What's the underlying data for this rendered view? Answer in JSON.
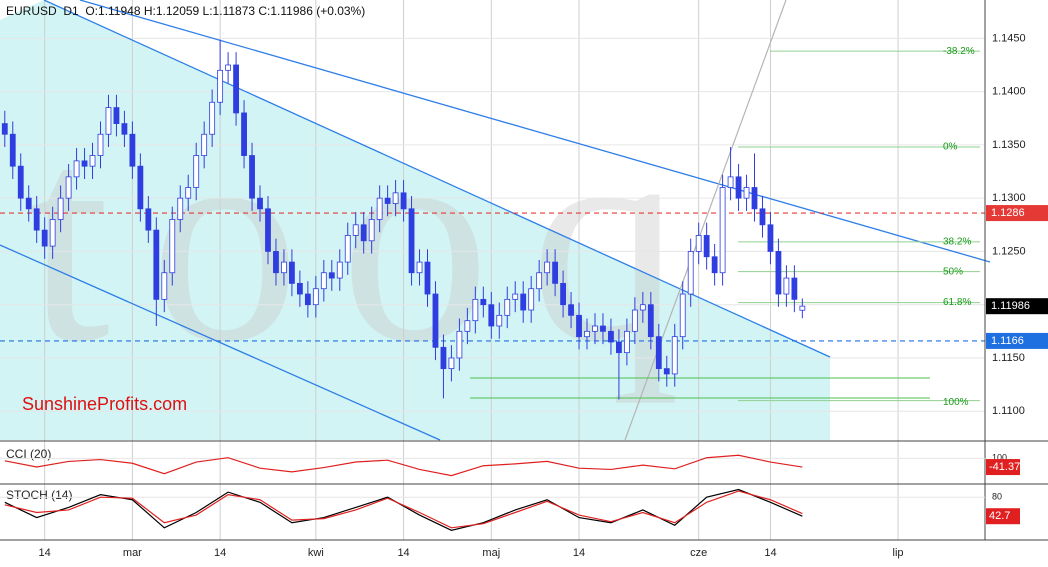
{
  "chart_data": {
    "type": "candlestick",
    "title": "EURUSD  D1  O:1.11948 H:1.12059 L:1.11873 C:1.11986 (+0.03%)",
    "watermark": "Stooq",
    "brand": "SunshineProfits.com",
    "up_color": "#ffffff",
    "down_color": "#2f3ee0",
    "edge_color": "#2f3ee0",
    "xlim": [
      -0.6,
      122.9
    ],
    "ylim": [
      1.1073,
      1.1486
    ],
    "xticks": [
      {
        "value": 5,
        "label": "14"
      },
      {
        "value": 16,
        "label": "mar"
      },
      {
        "value": 27,
        "label": "14"
      },
      {
        "value": 39,
        "label": "kwi"
      },
      {
        "value": 50,
        "label": "14"
      },
      {
        "value": 61,
        "label": "maj"
      },
      {
        "value": 72,
        "label": "14"
      },
      {
        "value": 87,
        "label": "cze"
      },
      {
        "value": 96,
        "label": "14"
      },
      {
        "value": 112,
        "label": "lip"
      }
    ],
    "yticks": [
      {
        "value": 1.145,
        "label": "1.1450"
      },
      {
        "value": 1.14,
        "label": "1.1400"
      },
      {
        "value": 1.135,
        "label": "1.1350"
      },
      {
        "value": 1.13,
        "label": "1.1300"
      },
      {
        "value": 1.125,
        "label": "1.1250"
      },
      {
        "value": 1.12,
        "label": "1.1200"
      },
      {
        "value": 1.115,
        "label": "1.1150"
      },
      {
        "value": 1.11,
        "label": "1.1100"
      }
    ],
    "grid": true,
    "levels": [
      {
        "value": 1.1286,
        "color": "#e53935"
      },
      {
        "value": 1.1166,
        "color": "#1e6fe0"
      },
      {
        "value": 1.11986,
        "color": "#000000"
      }
    ],
    "fib": [
      {
        "value": -38.2,
        "label": "-38.2%",
        "price": 1.1438
      },
      {
        "value": 0,
        "label": "0%",
        "price": 1.1348
      },
      {
        "value": 38.2,
        "label": "38.2%",
        "price": 1.1259
      },
      {
        "value": 50,
        "label": "50%",
        "price": 1.1231
      },
      {
        "value": 61.8,
        "label": "61.8%",
        "price": 1.1202
      },
      {
        "value": 100,
        "label": "100%",
        "price": 1.111
      }
    ],
    "ohlc": [
      [
        1.137,
        1.1382,
        1.1348,
        1.136
      ],
      [
        1.136,
        1.1372,
        1.1318,
        1.133
      ],
      [
        1.133,
        1.1342,
        1.1288,
        1.13
      ],
      [
        1.13,
        1.1312,
        1.1278,
        1.129
      ],
      [
        1.129,
        1.1302,
        1.1258,
        1.127
      ],
      [
        1.127,
        1.1282,
        1.1243,
        1.1255
      ],
      [
        1.1255,
        1.1292,
        1.1243,
        1.128
      ],
      [
        1.128,
        1.1312,
        1.1268,
        1.13
      ],
      [
        1.13,
        1.1332,
        1.1288,
        1.132
      ],
      [
        1.132,
        1.1347,
        1.1308,
        1.1335
      ],
      [
        1.1335,
        1.1347,
        1.1318,
        1.133
      ],
      [
        1.133,
        1.1352,
        1.1318,
        1.134
      ],
      [
        1.134,
        1.1372,
        1.1328,
        1.136
      ],
      [
        1.136,
        1.1397,
        1.1348,
        1.1385
      ],
      [
        1.1385,
        1.1397,
        1.1358,
        1.137
      ],
      [
        1.137,
        1.1382,
        1.1348,
        1.136
      ],
      [
        1.136,
        1.1372,
        1.1318,
        1.133
      ],
      [
        1.133,
        1.1342,
        1.1278,
        1.129
      ],
      [
        1.129,
        1.1302,
        1.1258,
        1.127
      ],
      [
        1.127,
        1.1282,
        1.118,
        1.1205
      ],
      [
        1.1205,
        1.1242,
        1.1193,
        1.123
      ],
      [
        1.123,
        1.1292,
        1.1218,
        1.128
      ],
      [
        1.128,
        1.1312,
        1.1268,
        1.13
      ],
      [
        1.13,
        1.1322,
        1.1288,
        1.131
      ],
      [
        1.131,
        1.1352,
        1.1298,
        1.134
      ],
      [
        1.134,
        1.1372,
        1.1328,
        1.136
      ],
      [
        1.136,
        1.1402,
        1.1348,
        1.139
      ],
      [
        1.139,
        1.1449,
        1.1378,
        1.142
      ],
      [
        1.142,
        1.1437,
        1.1408,
        1.1425
      ],
      [
        1.1425,
        1.1437,
        1.1368,
        1.138
      ],
      [
        1.138,
        1.1392,
        1.1328,
        1.134
      ],
      [
        1.134,
        1.1352,
        1.1288,
        1.13
      ],
      [
        1.13,
        1.1312,
        1.1278,
        1.129
      ],
      [
        1.129,
        1.1302,
        1.1238,
        1.125
      ],
      [
        1.125,
        1.1262,
        1.1218,
        1.123
      ],
      [
        1.123,
        1.1252,
        1.1218,
        1.124
      ],
      [
        1.124,
        1.1252,
        1.1208,
        1.122
      ],
      [
        1.122,
        1.1232,
        1.1198,
        1.121
      ],
      [
        1.121,
        1.1222,
        1.1188,
        1.12
      ],
      [
        1.12,
        1.1227,
        1.1188,
        1.1215
      ],
      [
        1.1215,
        1.1242,
        1.1203,
        1.123
      ],
      [
        1.123,
        1.1242,
        1.1213,
        1.1225
      ],
      [
        1.1225,
        1.1252,
        1.1213,
        1.124
      ],
      [
        1.124,
        1.1277,
        1.1228,
        1.1265
      ],
      [
        1.1265,
        1.1287,
        1.1253,
        1.1275
      ],
      [
        1.1275,
        1.1287,
        1.1248,
        1.126
      ],
      [
        1.126,
        1.1292,
        1.1248,
        1.128
      ],
      [
        1.128,
        1.1312,
        1.1268,
        1.13
      ],
      [
        1.13,
        1.1312,
        1.1283,
        1.1295
      ],
      [
        1.1295,
        1.1317,
        1.1283,
        1.1305
      ],
      [
        1.1305,
        1.1317,
        1.1278,
        1.129
      ],
      [
        1.129,
        1.1302,
        1.1218,
        1.123
      ],
      [
        1.123,
        1.1252,
        1.1218,
        1.124
      ],
      [
        1.124,
        1.1252,
        1.1198,
        1.121
      ],
      [
        1.121,
        1.1222,
        1.1148,
        1.116
      ],
      [
        1.116,
        1.1172,
        1.1112,
        1.114
      ],
      [
        1.114,
        1.1162,
        1.1128,
        1.115
      ],
      [
        1.115,
        1.1187,
        1.1138,
        1.1175
      ],
      [
        1.1175,
        1.1197,
        1.1163,
        1.1185
      ],
      [
        1.1185,
        1.1217,
        1.1173,
        1.1205
      ],
      [
        1.1205,
        1.1217,
        1.1188,
        1.12
      ],
      [
        1.12,
        1.1212,
        1.1168,
        1.118
      ],
      [
        1.118,
        1.1202,
        1.1168,
        1.119
      ],
      [
        1.119,
        1.1217,
        1.1178,
        1.1205
      ],
      [
        1.1205,
        1.1222,
        1.1193,
        1.121
      ],
      [
        1.121,
        1.1222,
        1.1183,
        1.1195
      ],
      [
        1.1195,
        1.1227,
        1.1183,
        1.1215
      ],
      [
        1.1215,
        1.1242,
        1.1203,
        1.123
      ],
      [
        1.123,
        1.1252,
        1.1218,
        1.124
      ],
      [
        1.124,
        1.1252,
        1.1208,
        1.122
      ],
      [
        1.122,
        1.1232,
        1.1188,
        1.12
      ],
      [
        1.12,
        1.1212,
        1.1178,
        1.119
      ],
      [
        1.119,
        1.1202,
        1.1158,
        1.117
      ],
      [
        1.117,
        1.1187,
        1.1158,
        1.1175
      ],
      [
        1.1175,
        1.1192,
        1.1163,
        1.118
      ],
      [
        1.118,
        1.1192,
        1.1163,
        1.1175
      ],
      [
        1.1175,
        1.1187,
        1.1153,
        1.1165
      ],
      [
        1.1165,
        1.1177,
        1.1111,
        1.1155
      ],
      [
        1.1155,
        1.1187,
        1.1143,
        1.1175
      ],
      [
        1.1175,
        1.1207,
        1.1163,
        1.1195
      ],
      [
        1.1195,
        1.1212,
        1.1183,
        1.12
      ],
      [
        1.12,
        1.1212,
        1.1158,
        1.117
      ],
      [
        1.117,
        1.1182,
        1.1128,
        1.114
      ],
      [
        1.114,
        1.1152,
        1.1123,
        1.1135
      ],
      [
        1.1135,
        1.1182,
        1.1123,
        1.117
      ],
      [
        1.117,
        1.1222,
        1.1158,
        1.121
      ],
      [
        1.121,
        1.1262,
        1.1198,
        1.125
      ],
      [
        1.125,
        1.1277,
        1.1238,
        1.1265
      ],
      [
        1.1265,
        1.1277,
        1.1233,
        1.1245
      ],
      [
        1.1245,
        1.1257,
        1.1218,
        1.123
      ],
      [
        1.123,
        1.1322,
        1.1218,
        1.131
      ],
      [
        1.131,
        1.1348,
        1.1298,
        1.132
      ],
      [
        1.132,
        1.1332,
        1.1288,
        1.13
      ],
      [
        1.13,
        1.1322,
        1.1288,
        1.131
      ],
      [
        1.131,
        1.1342,
        1.1278,
        1.129
      ],
      [
        1.129,
        1.1302,
        1.1263,
        1.1275
      ],
      [
        1.1275,
        1.1287,
        1.1238,
        1.125
      ],
      [
        1.125,
        1.1262,
        1.1198,
        1.121
      ],
      [
        1.121,
        1.1237,
        1.1198,
        1.1225
      ],
      [
        1.1225,
        1.1237,
        1.1193,
        1.1205
      ],
      [
        1.11948,
        1.12059,
        1.11873,
        1.11986
      ]
    ],
    "indicators": [
      {
        "title": "CCI (20)",
        "ylim": [
          -300,
          300
        ],
        "yticks": [
          100
        ],
        "x": [
          0,
          4,
          8,
          12,
          16,
          20,
          24,
          28,
          32,
          36,
          40,
          44,
          48,
          52,
          56,
          60,
          64,
          68,
          72,
          76,
          80,
          84,
          88,
          92,
          96,
          100
        ],
        "series": [
          {
            "color": "#e02020",
            "values": [
              60,
              -40,
              50,
              80,
              20,
              -150,
              40,
              110,
              -60,
              -120,
              -50,
              40,
              70,
              -80,
              -180,
              -20,
              10,
              50,
              -60,
              -80,
              -10,
              -70,
              110,
              150,
              40,
              -41.37
            ]
          }
        ],
        "current": -41.37
      },
      {
        "title": "STOCH (14)",
        "ylim": [
          0,
          100
        ],
        "yticks": [
          80
        ],
        "x": [
          0,
          4,
          8,
          12,
          16,
          20,
          24,
          28,
          32,
          36,
          40,
          44,
          48,
          52,
          56,
          60,
          64,
          68,
          72,
          76,
          80,
          84,
          88,
          92,
          96,
          100
        ],
        "series": [
          {
            "color": "#000000",
            "values": [
              70,
              40,
              60,
              85,
              75,
              20,
              50,
              90,
              70,
              30,
              40,
              60,
              80,
              45,
              15,
              30,
              55,
              75,
              40,
              30,
              55,
              25,
              80,
              95,
              70,
              42.7
            ]
          },
          {
            "color": "#e02020",
            "values": [
              65,
              50,
              55,
              80,
              78,
              30,
              45,
              85,
              75,
              35,
              38,
              55,
              78,
              50,
              20,
              28,
              50,
              72,
              45,
              32,
              50,
              30,
              70,
              92,
              75,
              48
            ]
          }
        ],
        "current": 42.7
      }
    ]
  }
}
